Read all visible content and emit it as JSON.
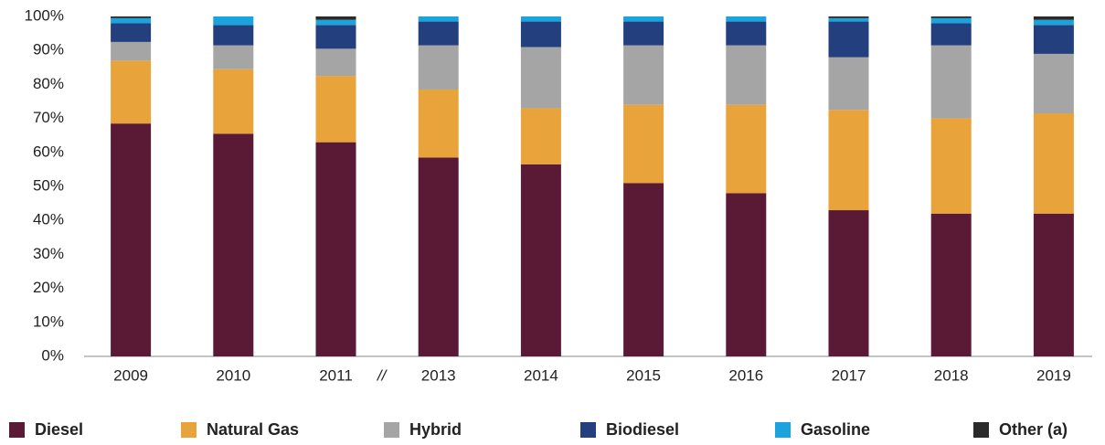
{
  "chart_data": {
    "type": "stacked_bar",
    "categories": [
      "2009",
      "2010",
      "2011",
      "2013",
      "2014",
      "2015",
      "2016",
      "2017",
      "2018",
      "2019"
    ],
    "axis_break": "//",
    "series": [
      {
        "name": "Diesel",
        "color": "#5a1a35",
        "values": [
          68.5,
          65.5,
          63,
          58.5,
          56.5,
          51,
          48,
          43,
          42,
          42
        ]
      },
      {
        "name": "Natural Gas",
        "color": "#e8a33a",
        "values": [
          18.5,
          19,
          19.5,
          20,
          16.5,
          23,
          26,
          29.5,
          28,
          29.5
        ]
      },
      {
        "name": "Hybrid",
        "color": "#a5a5a5",
        "values": [
          5.5,
          7,
          8,
          13,
          18,
          17.5,
          17.5,
          15.5,
          21.5,
          17.5
        ]
      },
      {
        "name": "Biodiesel",
        "color": "#233f7e",
        "values": [
          5.5,
          6,
          7,
          7,
          7.5,
          7,
          7,
          10.5,
          6.5,
          8.5
        ]
      },
      {
        "name": "Gasoline",
        "color": "#1aa3dd",
        "values": [
          1.5,
          2.5,
          1.5,
          1.5,
          1.5,
          1.5,
          1.5,
          1,
          1.5,
          1.5
        ]
      },
      {
        "name": "Other (a)",
        "color": "#2a2a2a",
        "values": [
          0.5,
          0,
          1,
          0,
          0,
          0,
          0,
          0.5,
          0.5,
          1
        ]
      }
    ],
    "ylim": [
      0,
      100
    ],
    "yticks": [
      {
        "value": 0,
        "label": "0%"
      },
      {
        "value": 10,
        "label": "10%"
      },
      {
        "value": 20,
        "label": "20%"
      },
      {
        "value": 30,
        "label": "30%"
      },
      {
        "value": 40,
        "label": "40%"
      },
      {
        "value": 50,
        "label": "50%"
      },
      {
        "value": 60,
        "label": "60%"
      },
      {
        "value": 70,
        "label": "70%"
      },
      {
        "value": 80,
        "label": "80%"
      },
      {
        "value": 90,
        "label": "90%"
      },
      {
        "value": 100,
        "label": "100%"
      }
    ],
    "grid": false,
    "legend": "bottom"
  }
}
